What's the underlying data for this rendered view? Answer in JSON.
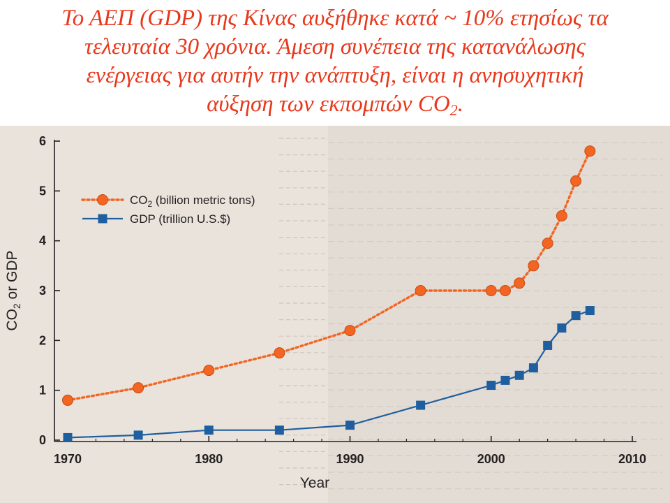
{
  "caption": {
    "line1": "Το ΑΕΠ (GDP) της Κίνας αυξήθηκε κατά ~ 10% ετησίως τα",
    "line2": "τελευταία 30 χρόνια. Άμεση συνέπεια της κατανάλωσης",
    "line3": "ενέργειας για αυτήν την ανάπτυξη, είναι η ανησυχητική",
    "line4_main": "αύξηση των εκπομπών  CO",
    "line4_sub": "2",
    "line4_end": "."
  },
  "colors": {
    "caption": "#e8381c",
    "co2_series": "#f26522",
    "gdp_series": "#1f5fa0",
    "page_background": "#e6dfd8"
  },
  "chart_data": {
    "type": "line",
    "xlabel": "Year",
    "ylabel": "CO2 or GDP",
    "xlim": [
      1970,
      2010
    ],
    "ylim": [
      0,
      6
    ],
    "xticks": [
      1970,
      1980,
      1990,
      2000,
      2010
    ],
    "yticks": [
      0,
      1,
      2,
      3,
      4,
      5,
      6
    ],
    "grid": false,
    "legend_position": "top-left",
    "series": [
      {
        "name": "CO2 (billion metric tons)",
        "legend_label": "CO",
        "legend_sub": "2",
        "legend_rest": " (billion metric tons)",
        "marker": "circle",
        "line_style": "dotted",
        "x": [
          1970,
          1975,
          1980,
          1985,
          1990,
          1995,
          2000,
          2001,
          2002,
          2003,
          2004,
          2005,
          2006,
          2007
        ],
        "y": [
          0.8,
          1.05,
          1.4,
          1.75,
          2.2,
          3.0,
          3.0,
          3.0,
          3.15,
          3.5,
          3.95,
          4.5,
          5.2,
          5.8
        ]
      },
      {
        "name": "GDP (trillion U.S.$)",
        "legend_label": "GDP (trillion U.S.$)",
        "marker": "square",
        "line_style": "solid",
        "x": [
          1970,
          1975,
          1980,
          1985,
          1990,
          1995,
          2000,
          2001,
          2002,
          2003,
          2004,
          2005,
          2006,
          2007
        ],
        "y": [
          0.05,
          0.1,
          0.2,
          0.2,
          0.3,
          0.7,
          1.1,
          1.2,
          1.3,
          1.45,
          1.9,
          2.25,
          2.5,
          2.6
        ]
      }
    ]
  }
}
